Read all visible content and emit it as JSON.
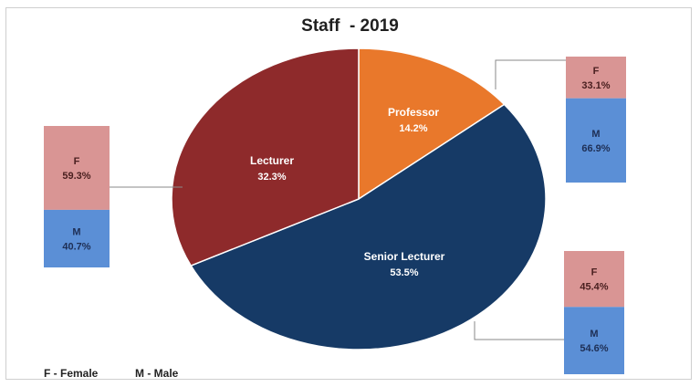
{
  "chart_data": {
    "type": "pie",
    "title": "Staff  - 2019",
    "slices": [
      {
        "label": "Professor",
        "value_label": "14.2%",
        "value": 14.2,
        "color": "#e9782b"
      },
      {
        "label": "Senior Lecturer",
        "value_label": "53.5%",
        "value": 53.5,
        "color": "#163a66"
      },
      {
        "label": "Lecturer",
        "value_label": "32.3%",
        "value": 32.3,
        "color": "#8e2a2b"
      }
    ],
    "breakdowns": [
      {
        "category": "Professor",
        "female_label": "F",
        "female": "33.1%",
        "female_value": 33.1,
        "male_label": "M",
        "male": "66.9%",
        "male_value": 66.9
      },
      {
        "category": "Senior Lecturer",
        "female_label": "F",
        "female": "45.4%",
        "female_value": 45.4,
        "male_label": "M",
        "male": "54.6%",
        "male_value": 54.6
      },
      {
        "category": "Lecturer",
        "female_label": "F",
        "female": "59.3%",
        "female_value": 59.3,
        "male_label": "M",
        "male": "40.7%",
        "male_value": 40.7
      }
    ],
    "colors": {
      "female": "#d99594",
      "male": "#5b8fd6"
    },
    "legend_note": {
      "female": "F - Female",
      "male": "M - Male"
    }
  }
}
